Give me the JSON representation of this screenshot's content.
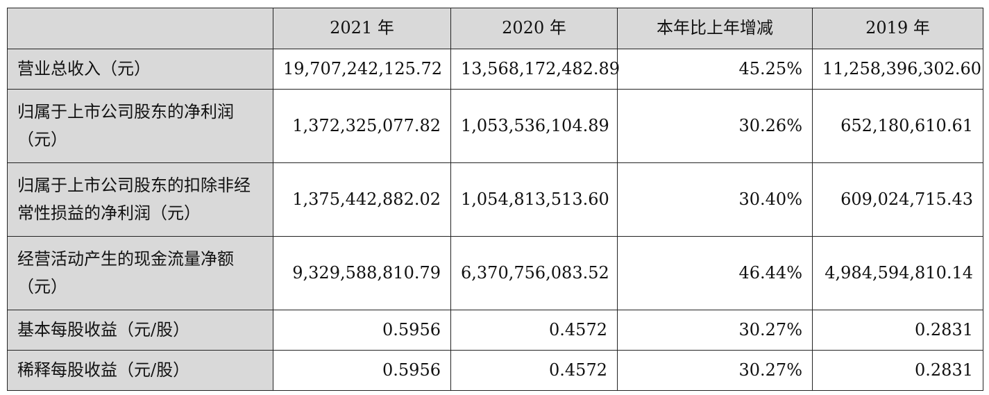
{
  "table": {
    "headers": [
      "",
      "2021 年",
      "2020 年",
      "本年比上年增减",
      "2019 年"
    ],
    "rows": [
      {
        "label": "营业总收入（元）",
        "values": [
          "19,707,242,125.72",
          "13,568,172,482.89",
          "45.25%",
          "11,258,396,302.60"
        ]
      },
      {
        "label": "归属于上市公司股东的净利润（元）",
        "values": [
          "1,372,325,077.82",
          "1,053,536,104.89",
          "30.26%",
          "652,180,610.61"
        ]
      },
      {
        "label": "归属于上市公司股东的扣除非经常性损益的净利润（元）",
        "values": [
          "1,375,442,882.02",
          "1,054,813,513.60",
          "30.40%",
          "609,024,715.43"
        ]
      },
      {
        "label": "经营活动产生的现金流量净额（元）",
        "values": [
          "9,329,588,810.79",
          "6,370,756,083.52",
          "46.44%",
          "4,984,594,810.14"
        ]
      },
      {
        "label": "基本每股收益（元/股）",
        "values": [
          "0.5956",
          "0.4572",
          "30.27%",
          "0.2831"
        ]
      },
      {
        "label": "稀释每股收益（元/股）",
        "values": [
          "0.5956",
          "0.4572",
          "30.27%",
          "0.2831"
        ]
      }
    ]
  },
  "colors": {
    "header_bg": "#d9d9d9",
    "border": "#222222",
    "text": "#111111"
  }
}
